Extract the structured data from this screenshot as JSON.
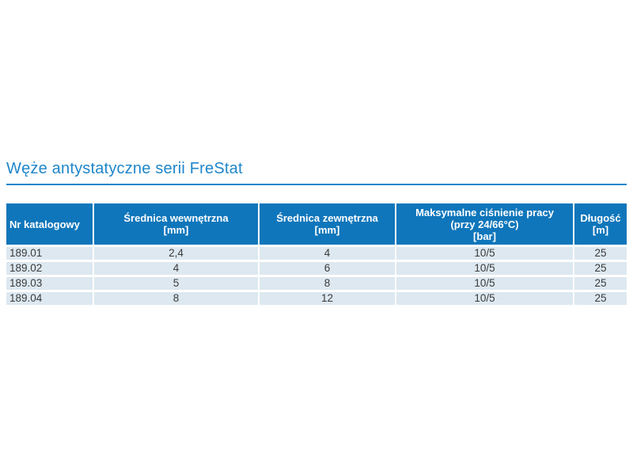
{
  "page": {
    "title": "Węże antystatyczne serii FreStat"
  },
  "colors": {
    "accent_blue": "#1e86ca",
    "table_header_bg": "#0f76bb",
    "table_header_text": "#ffffff",
    "table_row_bg": "#dde8f0",
    "table_row_text": "#3b3b3b"
  },
  "table": {
    "headers": [
      {
        "lines": [
          "Nr katalogowy"
        ]
      },
      {
        "lines": [
          "Średnica wewnętrzna",
          "[mm]"
        ]
      },
      {
        "lines": [
          "Średnica zewnętrzna",
          "[mm]"
        ]
      },
      {
        "lines": [
          "Maksymalne ciśnienie pracy",
          "(przy 24/66°C)",
          "[bar]"
        ]
      },
      {
        "lines": [
          "Długość",
          "[m]"
        ]
      }
    ],
    "rows": [
      [
        "189.01",
        "2,4",
        "4",
        "10/5",
        "25"
      ],
      [
        "189.02",
        "4",
        "6",
        "10/5",
        "25"
      ],
      [
        "189.03",
        "5",
        "8",
        "10/5",
        "25"
      ],
      [
        "189.04",
        "8",
        "12",
        "10/5",
        "25"
      ]
    ]
  }
}
